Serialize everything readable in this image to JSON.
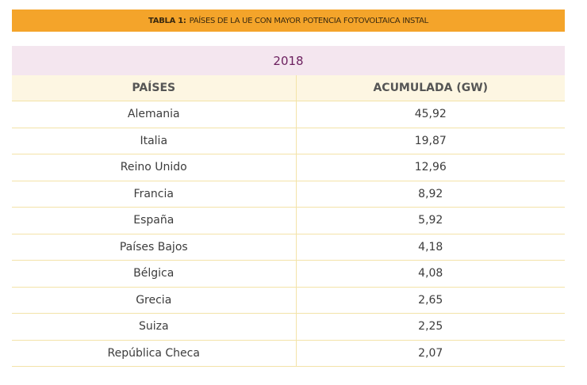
{
  "title": {
    "label": "TABLA 1:",
    "text": "PAÍSES DE LA UE CON MAYOR POTENCIA FOTOVOLTAICA INSTAL"
  },
  "table": {
    "year": "2018",
    "columns": [
      "PAÍSES",
      "ACUMULADA (GW)"
    ],
    "rows": [
      [
        "Alemania",
        "45,92"
      ],
      [
        "Italia",
        "19,87"
      ],
      [
        "Reino Unido",
        "12,96"
      ],
      [
        "Francia",
        "8,92"
      ],
      [
        "España",
        "5,92"
      ],
      [
        "Países Bajos",
        "4,18"
      ],
      [
        "Bélgica",
        "4,08"
      ],
      [
        "Grecia",
        "2,65"
      ],
      [
        "Suiza",
        "2,25"
      ],
      [
        "República Checa",
        "2,07"
      ]
    ]
  }
}
